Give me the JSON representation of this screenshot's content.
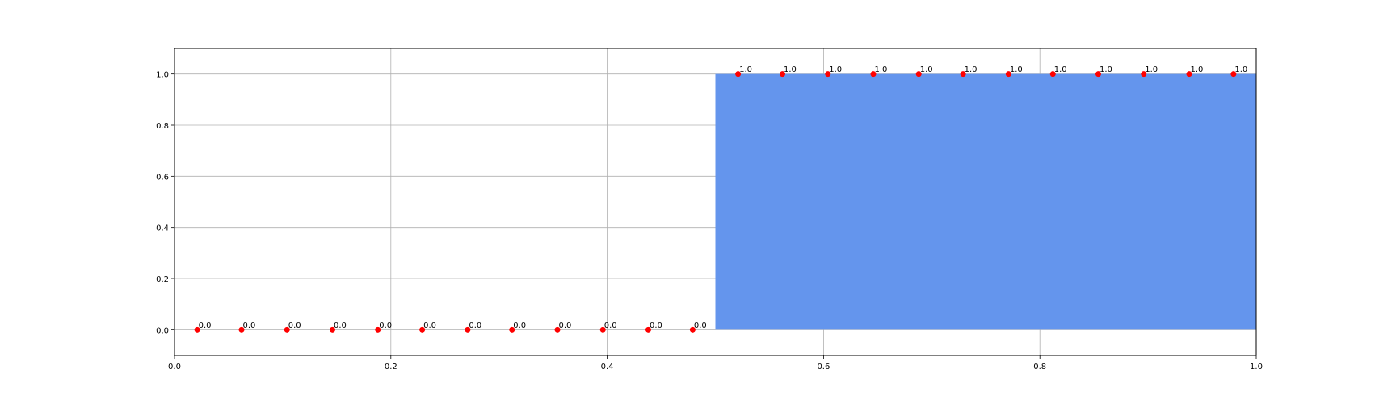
{
  "chart_data": {
    "type": "scatter",
    "title": "",
    "xlabel": "",
    "ylabel": "",
    "xlim": [
      0.0,
      1.0
    ],
    "ylim": [
      -0.1,
      1.1
    ],
    "grid": true,
    "x_ticks": [
      "0.0",
      "0.2",
      "0.4",
      "0.6",
      "0.8",
      "1.0"
    ],
    "y_ticks": [
      "0.0",
      "0.2",
      "0.4",
      "0.6",
      "0.8",
      "1.0"
    ],
    "shaded_region": {
      "x": [
        0.5,
        1.0
      ],
      "y": [
        0.0,
        1.0
      ],
      "color": "#6495ED"
    },
    "series": [
      {
        "color": "#FF0000",
        "x": [
          0.021,
          0.062,
          0.104,
          0.146,
          0.188,
          0.229,
          0.271,
          0.312,
          0.354,
          0.396,
          0.438,
          0.479,
          0.521,
          0.562,
          0.604,
          0.646,
          0.688,
          0.729,
          0.771,
          0.812,
          0.854,
          0.896,
          0.938,
          0.979
        ],
        "y": [
          0,
          0,
          0,
          0,
          0,
          0,
          0,
          0,
          0,
          0,
          0,
          0,
          1,
          1,
          1,
          1,
          1,
          1,
          1,
          1,
          1,
          1,
          1,
          1
        ],
        "labels": [
          "0.0",
          "0.0",
          "0.0",
          "0.0",
          "0.0",
          "0.0",
          "0.0",
          "0.0",
          "0.0",
          "0.0",
          "0.0",
          "0.0",
          "1.0",
          "1.0",
          "1.0",
          "1.0",
          "1.0",
          "1.0",
          "1.0",
          "1.0",
          "1.0",
          "1.0",
          "1.0",
          "1.0"
        ]
      }
    ]
  }
}
